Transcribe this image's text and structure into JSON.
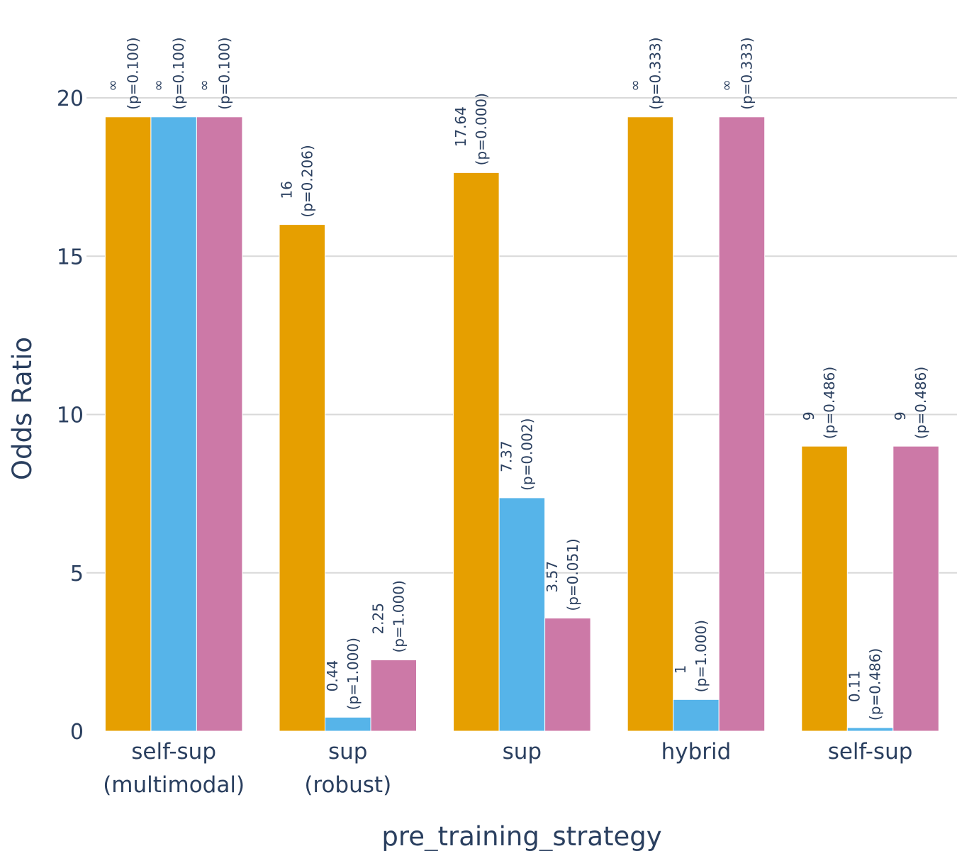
{
  "chart_data": {
    "type": "bar",
    "title": "",
    "xlabel": "pre_training_strategy",
    "ylabel": "Odds Ratio",
    "ylim": [
      0,
      21.8
    ],
    "yticks": [
      0,
      5,
      10,
      15,
      20
    ],
    "grid": true,
    "categories": [
      [
        "self-sup",
        "(multimodal)"
      ],
      [
        "sup",
        "(robust)"
      ],
      [
        "sup"
      ],
      [
        "hybrid"
      ],
      [
        "self-sup"
      ]
    ],
    "series": [
      {
        "color": "#E69F00",
        "values": [
          19.4,
          16,
          17.64,
          19.4,
          9
        ],
        "labels": [
          [
            "∞",
            "(p=0.100)"
          ],
          [
            "16",
            "(p=0.206)"
          ],
          [
            "17.64",
            "(p=0.000)"
          ],
          [
            "∞",
            "(p=0.333)"
          ],
          [
            "9",
            "(p=0.486)"
          ]
        ]
      },
      {
        "color": "#56B4E9",
        "values": [
          19.4,
          0.44,
          7.37,
          1,
          0.11
        ],
        "labels": [
          [
            "∞",
            "(p=0.100)"
          ],
          [
            "0.44",
            "(p=1.000)"
          ],
          [
            "7.37",
            "(p=0.002)"
          ],
          [
            "1",
            "(p=1.000)"
          ],
          [
            "0.11",
            "(p=0.486)"
          ]
        ]
      },
      {
        "color": "#CC79A7",
        "values": [
          19.4,
          2.25,
          3.57,
          19.4,
          9
        ],
        "labels": [
          [
            "∞",
            "(p=0.100)"
          ],
          [
            "2.25",
            "(p=1.000)"
          ],
          [
            "3.57",
            "(p=0.051)"
          ],
          [
            "∞",
            "(p=0.333)"
          ],
          [
            "9",
            "(p=0.486)"
          ]
        ]
      }
    ]
  }
}
